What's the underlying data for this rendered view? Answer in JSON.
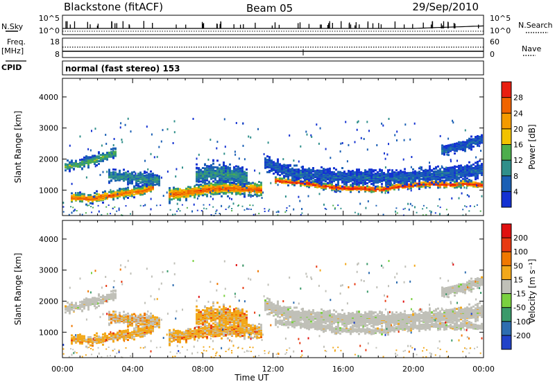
{
  "header": {
    "station": "Blackstone (fitACF)",
    "beam": "Beam 05",
    "date": "29/Sep/2010"
  },
  "top_panel": {
    "left_label": "N.Sky",
    "left_ticks": [
      "10^5",
      "10^0"
    ],
    "right_label": "N.Search",
    "right_ticks": [
      "10^5",
      "10^0"
    ]
  },
  "freq_panel": {
    "left_label_1": "Freq.",
    "left_label_2": "[MHz]",
    "left_ticks": [
      "18",
      "8"
    ],
    "right_label": "Nave",
    "right_ticks": [
      "60",
      "0"
    ]
  },
  "cpid": {
    "label": "CPID",
    "value": "normal (fast stereo) 153"
  },
  "chart_data": [
    {
      "type": "heatmap",
      "name": "power",
      "ylabel": "Slant Range [km]",
      "xlabel": "Time UT",
      "x_ticks": [
        "00:00",
        "04:00",
        "08:00",
        "12:00",
        "16:00",
        "20:00",
        "00:00"
      ],
      "xlim_hours": [
        0,
        24
      ],
      "ylim": [
        180,
        4600
      ],
      "y_ticks": [
        1000,
        2000,
        3000,
        4000
      ],
      "colorbar": {
        "label": "Power [dB]",
        "tick_labels": [
          "4",
          "8",
          "12",
          "16",
          "20",
          "24",
          "28"
        ],
        "levels": [
          0,
          4,
          8,
          12,
          16,
          20,
          24,
          28,
          32
        ],
        "colors": [
          "#1432d2",
          "#1a5fb4",
          "#2f8f8a",
          "#4cae4c",
          "#f2c200",
          "#f49a00",
          "#f06400",
          "#e81e10"
        ]
      }
    },
    {
      "type": "heatmap",
      "name": "velocity",
      "ylabel": "Slant Range [km]",
      "xlabel": "Time UT",
      "x_ticks": [
        "00:00",
        "04:00",
        "08:00",
        "12:00",
        "16:00",
        "20:00",
        "00:00"
      ],
      "xlim_hours": [
        0,
        24
      ],
      "ylim": [
        180,
        4600
      ],
      "y_ticks": [
        1000,
        2000,
        3000,
        4000
      ],
      "colorbar": {
        "label": "Velocity [m s⁻¹]",
        "tick_labels": [
          "200",
          "100",
          "50",
          "15",
          "-15",
          "-50",
          "-100",
          "-200"
        ],
        "colors": [
          "#2242c8",
          "#2e6db0",
          "#3a9a6a",
          "#7ad040",
          "#c0c0b8",
          "#f2a81a",
          "#f07800",
          "#e83a12",
          "#e01010"
        ]
      }
    }
  ],
  "colors": {
    "ground_scatter": "#c0c0b8",
    "line": "#000000"
  }
}
